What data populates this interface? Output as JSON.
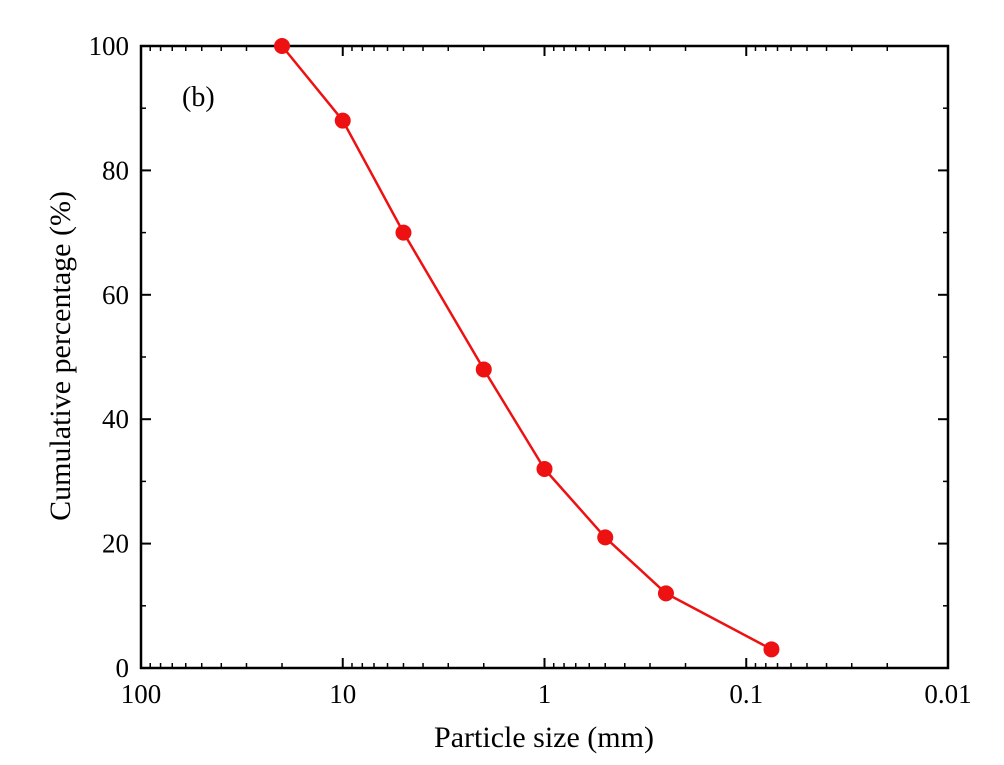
{
  "chart_data": {
    "type": "line",
    "panel_label": "(b)",
    "title": "",
    "xlabel": "Particle size (mm)",
    "ylabel": "Cumulative percentage  (%)",
    "x_scale": "log",
    "x_reversed": true,
    "xlim": [
      100,
      0.01
    ],
    "ylim": [
      0,
      100
    ],
    "x_ticks": [
      100,
      10,
      1,
      0.1,
      0.01
    ],
    "x_tick_labels": [
      "100",
      "10",
      "1",
      "0.1",
      "0.01"
    ],
    "y_ticks": [
      0,
      20,
      40,
      60,
      80,
      100
    ],
    "y_tick_labels": [
      "0",
      "20",
      "40",
      "60",
      "80",
      "100"
    ],
    "grid": false,
    "series": [
      {
        "name": "Cumulative percentage",
        "color": "#ee1111",
        "x": [
          20,
          10,
          5,
          2,
          1,
          0.5,
          0.25,
          0.075
        ],
        "y": [
          100,
          88,
          70,
          48,
          32,
          21,
          12,
          3
        ]
      }
    ]
  }
}
